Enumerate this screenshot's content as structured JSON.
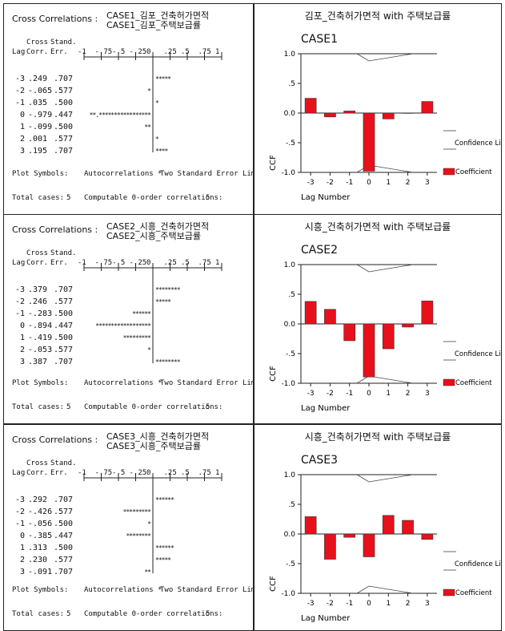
{
  "col_headers": [
    "Lag",
    "Cross\nCorr.",
    "Stand.\nErr."
  ],
  "scale_labels": [
    "-1",
    "-.75",
    "-.5",
    "-.25",
    "0",
    ".25",
    ".5",
    ".75",
    "1"
  ],
  "plot_symbols_label": "Plot Symbols:",
  "autocorr_label": "Autocorrelations *",
  "two_se_label": "Two Standard Error Limits",
  "total_cases_label": "Total cases:",
  "computable_label": "Computable 0-order correlations:",
  "chart_common": {
    "ylabel": "CCF",
    "xlabel": "Lag Number",
    "yticks": [
      "1.0",
      ".5",
      "0.0",
      "-.5",
      "-1.0"
    ],
    "xticks": [
      "-3",
      "-2",
      "-1",
      "0",
      "1",
      "2",
      "3"
    ],
    "legend_confidence": "Confidence Lim",
    "legend_coefficient": "Coefficient",
    "bar_color": "#e8101a"
  },
  "panels": [
    {
      "text_title_prefix": "Cross Correlations :",
      "series1": "CASE1_김포_건축허가면적",
      "series2": "CASE1_김포_주택보급률",
      "rows": [
        {
          "lag": "-3",
          "corr": ".249",
          "err": ".707",
          "bar": "     *****"
        },
        {
          "lag": "-2",
          "corr": "-.065",
          "err": ".577",
          "bar": "    *"
        },
        {
          "lag": "-1",
          "corr": ".035",
          "err": ".500",
          "bar": "     *"
        },
        {
          "lag": "0",
          "corr": "-.979",
          "err": ".447",
          "bar": "**.*****************"
        },
        {
          "lag": "1",
          "corr": "-.099",
          "err": ".500",
          "bar": "   **"
        },
        {
          "lag": "2",
          "corr": ".001",
          "err": ".577",
          "bar": "     *"
        },
        {
          "lag": "3",
          "corr": ".195",
          "err": ".707",
          "bar": "     ****"
        }
      ],
      "total_cases": "5",
      "computable": "5",
      "chart_title": "김포_건축허가면적 with 주택보급률",
      "case_label": "CASE1",
      "chart_data": {
        "type": "bar",
        "categories": [
          "-3",
          "-2",
          "-1",
          "0",
          "1",
          "2",
          "3"
        ],
        "values": [
          0.249,
          -0.065,
          0.035,
          -0.979,
          -0.099,
          0.001,
          0.195
        ],
        "ylim": [
          -1,
          1
        ]
      }
    },
    {
      "text_title_prefix": "Cross Correlations :",
      "series1": "CASE2_시흥_건축허가면적",
      "series2": "CASE2_시흥_주택보급률",
      "rows": [
        {
          "lag": "-3",
          "corr": ".379",
          "err": ".707",
          "bar": "     ********"
        },
        {
          "lag": "-2",
          "corr": ".246",
          "err": ".577",
          "bar": "     *****"
        },
        {
          "lag": "-1",
          "corr": "-.283",
          "err": ".500",
          "bar": "******"
        },
        {
          "lag": "0",
          "corr": "-.894",
          "err": ".447",
          "bar": "******************"
        },
        {
          "lag": "1",
          "corr": "-.419",
          "err": ".500",
          "bar": "*********"
        },
        {
          "lag": "2",
          "corr": "-.053",
          "err": ".577",
          "bar": "    *"
        },
        {
          "lag": "3",
          "corr": ".387",
          "err": ".707",
          "bar": "     ********"
        }
      ],
      "total_cases": "5",
      "computable": "5",
      "chart_title": "시흥_건축허가면적 with 주택보급률",
      "case_label": "CASE2",
      "chart_data": {
        "type": "bar",
        "categories": [
          "-3",
          "-2",
          "-1",
          "0",
          "1",
          "2",
          "3"
        ],
        "values": [
          0.379,
          0.246,
          -0.283,
          -0.894,
          -0.419,
          -0.053,
          0.387
        ],
        "ylim": [
          -1,
          1
        ]
      }
    },
    {
      "text_title_prefix": "Cross Correlations :",
      "series1": "CASE3_시흥_건축허가면적",
      "series2": "CASE3_시흥_주택보급률",
      "rows": [
        {
          "lag": "-3",
          "corr": ".292",
          "err": ".707",
          "bar": "     ******"
        },
        {
          "lag": "-2",
          "corr": "-.426",
          "err": ".577",
          "bar": "*********"
        },
        {
          "lag": "-1",
          "corr": "-.056",
          "err": ".500",
          "bar": "    *"
        },
        {
          "lag": "0",
          "corr": "-.385",
          "err": ".447",
          "bar": "********"
        },
        {
          "lag": "1",
          "corr": ".313",
          "err": ".500",
          "bar": "     ******"
        },
        {
          "lag": "2",
          "corr": ".230",
          "err": ".577",
          "bar": "     *****"
        },
        {
          "lag": "3",
          "corr": "-.091",
          "err": ".707",
          "bar": "   **"
        }
      ],
      "total_cases": "5",
      "computable": "5",
      "chart_title": "시흥_건축허가면적 with 주택보급률",
      "case_label": "CASE3",
      "chart_data": {
        "type": "bar",
        "categories": [
          "-3",
          "-2",
          "-1",
          "0",
          "1",
          "2",
          "3"
        ],
        "values": [
          0.292,
          -0.426,
          -0.056,
          -0.385,
          0.313,
          0.23,
          -0.091
        ],
        "ylim": [
          -1,
          1
        ]
      }
    }
  ]
}
